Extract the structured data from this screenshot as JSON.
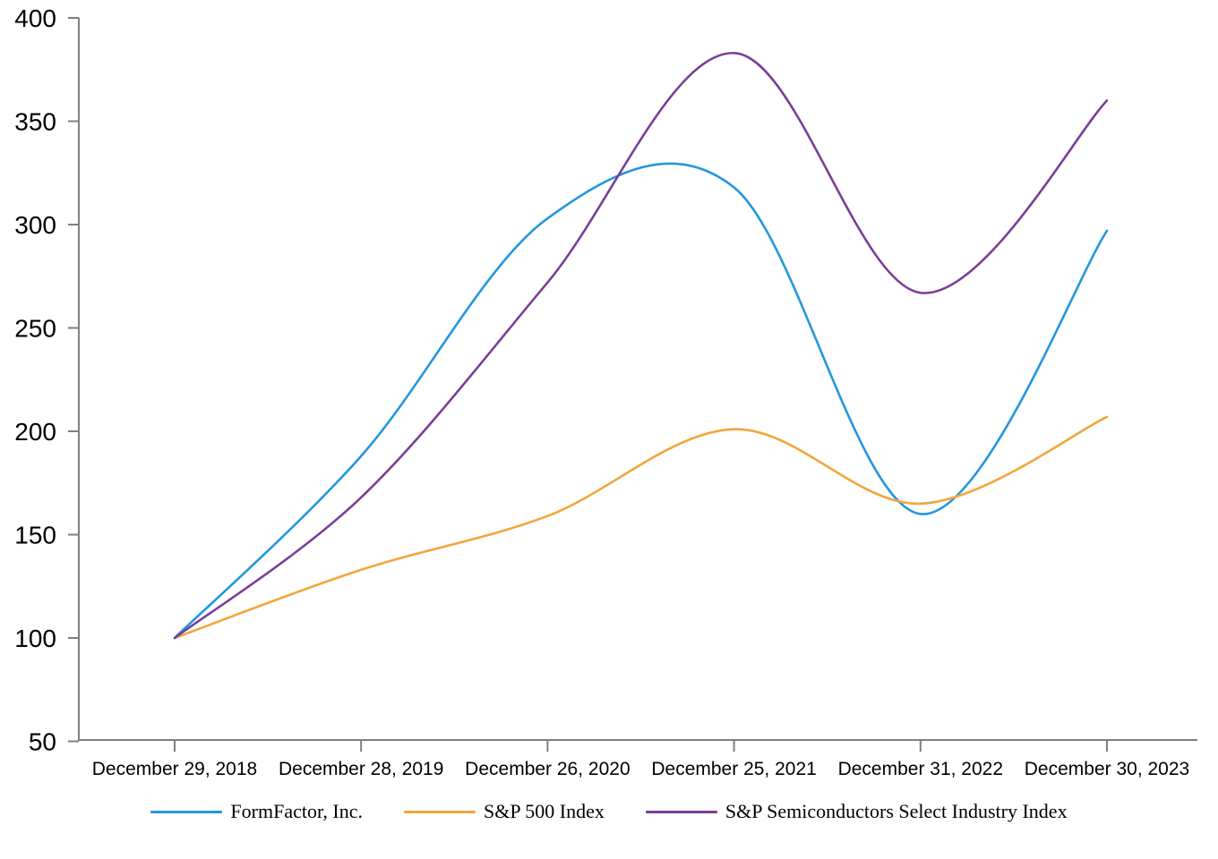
{
  "chart_data": {
    "type": "line",
    "title": "",
    "smoothed": true,
    "grid": false,
    "legend_position": "bottom",
    "background_color": "#FFFFFF",
    "axis_color": "#7F7F7F",
    "text_color": "#000000",
    "x_categories": [
      "December 29, 2018",
      "December 28, 2019",
      "December 26, 2020",
      "December 25, 2021",
      "December 31, 2022",
      "December 30, 2023"
    ],
    "ylim": [
      50,
      400
    ],
    "yticks": [
      50,
      100,
      150,
      200,
      250,
      300,
      350,
      400
    ],
    "series": [
      {
        "name": "FormFactor, Inc.",
        "color": "#2397DC",
        "values": [
          100,
          188,
          303,
          318,
          160,
          297
        ]
      },
      {
        "name": "S&P 500 Index",
        "color": "#F2A63A",
        "values": [
          100,
          133,
          159,
          201,
          165,
          207
        ]
      },
      {
        "name": "S&P Semiconductors Select Industry Index",
        "color": "#7B3E97",
        "values": [
          100,
          168,
          272,
          383,
          267,
          360
        ]
      }
    ]
  }
}
